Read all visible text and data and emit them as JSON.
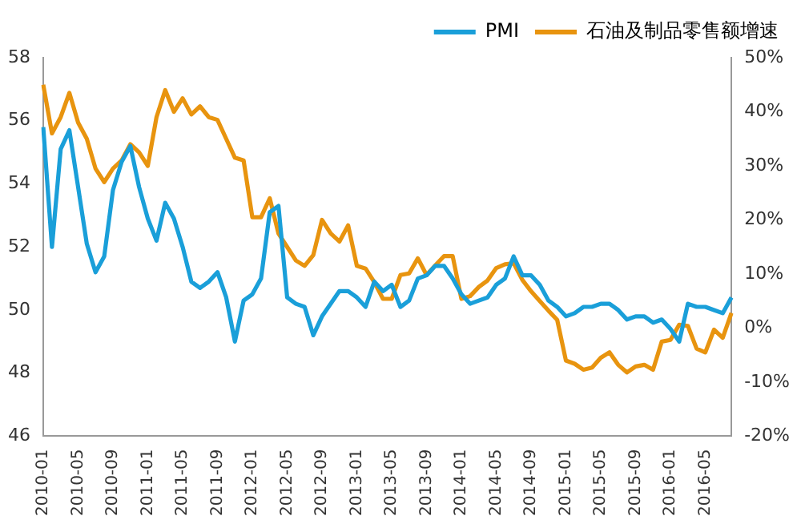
{
  "chart_data": {
    "type": "line",
    "categories": [
      "2010-01",
      null,
      null,
      null,
      "2010-05",
      null,
      null,
      null,
      "2010-09",
      null,
      null,
      null,
      "2011-01",
      null,
      null,
      null,
      "2011-05",
      null,
      null,
      null,
      "2011-09",
      null,
      null,
      null,
      "2012-01",
      null,
      null,
      null,
      "2012-05",
      null,
      null,
      null,
      "2012-09",
      null,
      null,
      null,
      "2013-01",
      null,
      null,
      null,
      "2013-05",
      null,
      null,
      null,
      "2013-09",
      null,
      null,
      null,
      "2014-01",
      null,
      null,
      null,
      "2014-05",
      null,
      null,
      null,
      "2014-09",
      null,
      null,
      null,
      "2015-01",
      null,
      null,
      null,
      "2015-05",
      null,
      null,
      null,
      "2015-09",
      null,
      null,
      null,
      "2016-01",
      null,
      null,
      null,
      "2016-05",
      null,
      null,
      null
    ],
    "series": [
      {
        "name": "PMI",
        "color": "#1a9fd9",
        "values": [
          55.8,
          52.0,
          55.1,
          55.7,
          53.9,
          52.1,
          51.2,
          51.7,
          53.8,
          54.7,
          55.2,
          53.9,
          52.9,
          52.2,
          53.4,
          52.9,
          52.0,
          50.9,
          50.7,
          50.9,
          51.2,
          50.4,
          49.0,
          50.3,
          50.5,
          51.0,
          53.1,
          53.3,
          50.4,
          50.2,
          50.1,
          49.2,
          49.8,
          50.2,
          50.6,
          50.6,
          50.4,
          50.1,
          50.9,
          50.6,
          50.8,
          50.1,
          50.3,
          51.0,
          51.1,
          51.4,
          51.4,
          51.0,
          50.5,
          50.2,
          50.3,
          50.4,
          50.8,
          51.0,
          51.7,
          51.1,
          51.1,
          50.8,
          50.3,
          50.1,
          49.8,
          49.9,
          50.1,
          50.1,
          50.2,
          50.2,
          50.0,
          49.7,
          49.8,
          49.8,
          49.6,
          49.7,
          49.4,
          49.0,
          50.2,
          50.1,
          50.1,
          50.0,
          49.9,
          50.4
        ]
      },
      {
        "name": "石油及制品零售额增速",
        "color": "#e8940f",
        "axis": "y2",
        "values": [
          45,
          36,
          39,
          43.5,
          38,
          35,
          29.5,
          27,
          29.5,
          31,
          34,
          32.5,
          30,
          39,
          44,
          40,
          42.5,
          39.5,
          41,
          39,
          38.5,
          35,
          31.5,
          31,
          20.5,
          20.5,
          24,
          17.5,
          15,
          12.5,
          11.5,
          13.5,
          20,
          17.5,
          16,
          19,
          11.5,
          11,
          8.5,
          5.4,
          5.4,
          9.8,
          10.1,
          12.9,
          9.8,
          11.6,
          13.3,
          13.3,
          5.4,
          5.9,
          7.6,
          8.8,
          11.1,
          11.8,
          12,
          8.9,
          6.8,
          5,
          3.2,
          1.5,
          -6,
          -6.6,
          -7.7,
          -7.3,
          -5.5,
          -4.5,
          -6.8,
          -8.2,
          -7.1,
          -6.8,
          -7.7,
          -2.5,
          -2.2,
          0.6,
          0.4,
          -3.8,
          -4.5,
          -0.3,
          -1.8,
          2.8
        ]
      }
    ],
    "ylim": [
      46,
      58
    ],
    "yticks": [
      46,
      48,
      50,
      52,
      54,
      56,
      58
    ],
    "y2lim": [
      -20,
      50
    ],
    "y2ticks": [
      {
        "value": -20,
        "label": "-20%"
      },
      {
        "value": -10,
        "label": "-10%"
      },
      {
        "value": 0,
        "label": "0%"
      },
      {
        "value": 10,
        "label": "10%"
      },
      {
        "value": 20,
        "label": "20%"
      },
      {
        "value": 30,
        "label": "30%"
      },
      {
        "value": 40,
        "label": "40%"
      },
      {
        "value": 50,
        "label": "50%"
      }
    ],
    "grid": false,
    "legend": "top right",
    "marker": "none",
    "line_style": "solid"
  }
}
